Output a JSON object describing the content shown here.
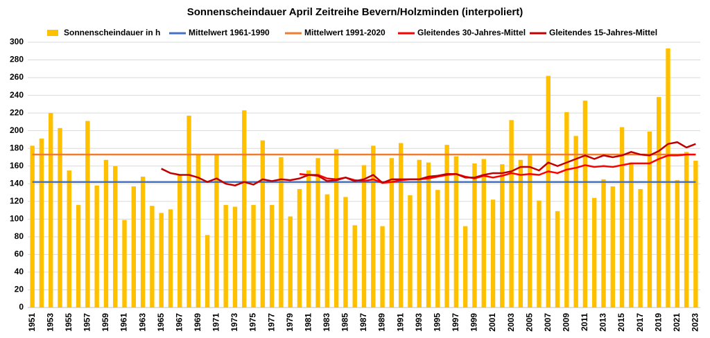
{
  "chart_data": {
    "type": "bar",
    "title": "Sonnenscheindauer April Zeitreihe Bevern/Holzminden (interpoliert)",
    "categories": [
      "1951",
      null,
      "1953",
      null,
      "1955",
      null,
      "1957",
      null,
      "1959",
      null,
      "1961",
      null,
      "1963",
      null,
      "1965",
      null,
      "1967",
      null,
      "1969",
      null,
      "1971",
      null,
      "1973",
      null,
      "1975",
      null,
      "1977",
      null,
      "1979",
      null,
      "1981",
      null,
      "1983",
      null,
      "1985",
      null,
      "1987",
      null,
      "1989",
      null,
      "1991",
      null,
      "1993",
      null,
      "1995",
      null,
      "1997",
      null,
      "1999",
      null,
      "2001",
      null,
      "2003",
      null,
      "2005",
      null,
      "2007",
      null,
      "2009",
      null,
      "2011",
      null,
      "2013",
      null,
      "2015",
      null,
      "2017",
      null,
      "2019",
      null,
      "2021",
      null,
      "2023"
    ],
    "series": [
      {
        "name": "Sonnenscheindauer in h",
        "type": "bar",
        "color": "#ffc000",
        "values": [
          183,
          191,
          220,
          203,
          155,
          116,
          211,
          138,
          167,
          160,
          99,
          137,
          148,
          115,
          107,
          111,
          150,
          217,
          174,
          82,
          174,
          116,
          114,
          223,
          116,
          189,
          116,
          170,
          103,
          134,
          155,
          169,
          128,
          179,
          125,
          93,
          161,
          183,
          92,
          169,
          186,
          127,
          167,
          164,
          133,
          184,
          171,
          92,
          163,
          168,
          122,
          162,
          212,
          167,
          172,
          121,
          262,
          109,
          221,
          194,
          234,
          124,
          145,
          137,
          204,
          164,
          134,
          199,
          238,
          293,
          144,
          176,
          166
        ]
      },
      {
        "name": "Mittelwert 1961-1990",
        "type": "line",
        "color": "#4472c4",
        "values": [
          142,
          142,
          142,
          142,
          142,
          142,
          142,
          142,
          142,
          142,
          142,
          142,
          142,
          142,
          142,
          142,
          142,
          142,
          142,
          142,
          142,
          142,
          142,
          142,
          142,
          142,
          142,
          142,
          142,
          142,
          142,
          142,
          142,
          142,
          142,
          142,
          142,
          142,
          142,
          142,
          142,
          142,
          142,
          142,
          142,
          142,
          142,
          142,
          142,
          142,
          142,
          142,
          142,
          142,
          142,
          142,
          142,
          142,
          142,
          142,
          142,
          142,
          142,
          142,
          142,
          142,
          142,
          142,
          142,
          142,
          142,
          142,
          142
        ]
      },
      {
        "name": "Mittelwert 1991-2020",
        "type": "line",
        "color": "#ed7d31",
        "values": [
          173,
          173,
          173,
          173,
          173,
          173,
          173,
          173,
          173,
          173,
          173,
          173,
          173,
          173,
          173,
          173,
          173,
          173,
          173,
          173,
          173,
          173,
          173,
          173,
          173,
          173,
          173,
          173,
          173,
          173,
          173,
          173,
          173,
          173,
          173,
          173,
          173,
          173,
          173,
          173,
          173,
          173,
          173,
          173,
          173,
          173,
          173,
          173,
          173,
          173,
          173,
          173,
          173,
          173,
          173,
          173,
          173,
          173,
          173,
          173,
          173,
          173,
          173,
          173,
          173,
          173,
          173,
          173,
          173,
          173,
          173,
          173,
          173
        ]
      },
      {
        "name": "Gleitendes 30-Jahres-Mittel",
        "type": "line",
        "color": "#ff0000",
        "values": [
          null,
          null,
          null,
          null,
          null,
          null,
          null,
          null,
          null,
          null,
          null,
          null,
          null,
          null,
          null,
          null,
          null,
          null,
          null,
          null,
          null,
          null,
          null,
          null,
          null,
          null,
          null,
          null,
          null,
          151,
          150,
          150,
          146,
          145,
          147,
          144,
          143,
          145,
          141,
          142,
          144,
          145,
          145,
          146,
          148,
          150,
          151,
          148,
          146,
          149,
          147,
          149,
          152,
          150,
          151,
          150,
          154,
          152,
          156,
          158,
          161,
          159,
          160,
          159,
          161,
          163,
          163,
          163,
          168,
          172,
          172,
          173,
          173
        ]
      },
      {
        "name": "Gleitendes 15-Jahres-Mittel",
        "type": "line",
        "color": "#c00000",
        "values": [
          null,
          null,
          null,
          null,
          null,
          null,
          null,
          null,
          null,
          null,
          null,
          null,
          null,
          null,
          157,
          152,
          150,
          150,
          147,
          142,
          146,
          140,
          138,
          142,
          139,
          145,
          143,
          145,
          144,
          146,
          150,
          149,
          143,
          144,
          147,
          143,
          145,
          150,
          141,
          145,
          145,
          145,
          145,
          148,
          149,
          151,
          151,
          147,
          147,
          150,
          152,
          152,
          154,
          159,
          159,
          155,
          164,
          160,
          164,
          168,
          172,
          168,
          172,
          170,
          172,
          176,
          173,
          172,
          177,
          185,
          187,
          181,
          185
        ]
      }
    ],
    "ylim": [
      0,
      300
    ],
    "yticks": [
      0,
      20,
      40,
      60,
      80,
      100,
      120,
      140,
      160,
      180,
      200,
      220,
      240,
      260,
      280,
      300
    ],
    "grid": true
  }
}
